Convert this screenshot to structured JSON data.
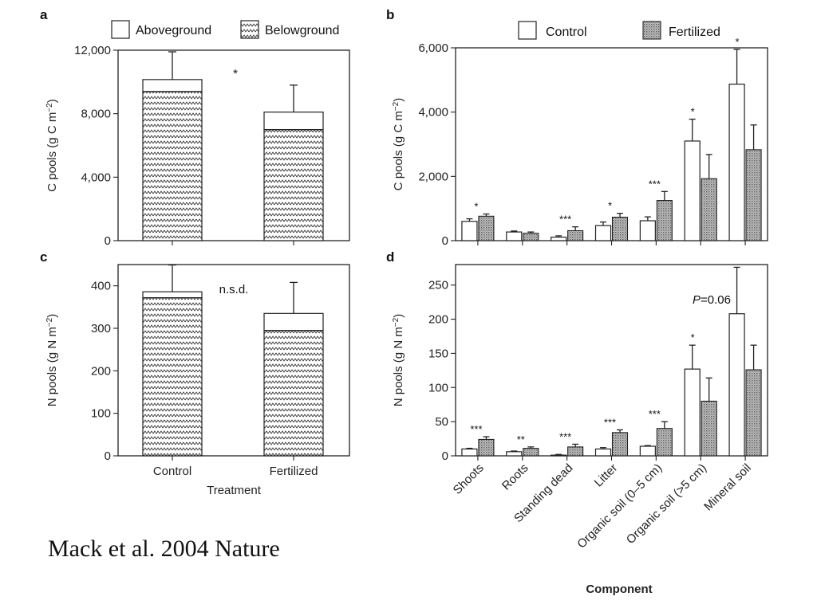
{
  "credit": "Mack et al. 2004 Nature",
  "chart_data": [
    {
      "panel": "a",
      "type": "bar",
      "stacked": true,
      "categories": [
        "Control",
        "Fertilized"
      ],
      "ylabel": "C pools (g C m−2)",
      "ylim": [
        0,
        12000
      ],
      "yticks": [
        0,
        4000,
        8000,
        12000
      ],
      "ytick_labels": [
        "0",
        "4,000",
        "8,000",
        "12,000"
      ],
      "legend": [
        "Aboveground",
        "Belowground"
      ],
      "series": [
        {
          "name": "Belowground",
          "values": [
            9400,
            7000
          ]
        },
        {
          "name": "Aboveground",
          "values": [
            750,
            1100
          ]
        }
      ],
      "total_error_top": [
        11900,
        9800
      ],
      "annotations": [
        {
          "text": "*",
          "between": [
            "Control",
            "Fertilized"
          ]
        }
      ],
      "show_xticklabels": false
    },
    {
      "panel": "c",
      "type": "bar",
      "stacked": true,
      "categories": [
        "Control",
        "Fertilized"
      ],
      "xlabel": "Treatment",
      "ylabel": "N pools (g N m−2)",
      "ylim": [
        0,
        450
      ],
      "yticks": [
        0,
        100,
        200,
        300,
        400
      ],
      "ytick_labels": [
        "0",
        "100",
        "200",
        "300",
        "400"
      ],
      "series": [
        {
          "name": "Belowground",
          "values": [
            372,
            295
          ]
        },
        {
          "name": "Aboveground",
          "values": [
            14,
            40
          ]
        }
      ],
      "total_error_top": [
        449,
        408
      ],
      "annotations": [
        {
          "text": "n.s.d.",
          "between": [
            "Control",
            "Fertilized"
          ]
        }
      ],
      "show_xticklabels": true
    },
    {
      "panel": "b",
      "type": "bar",
      "categories": [
        "Shoots",
        "Roots",
        "Standing dead",
        "Litter",
        "Organic soil (0–5 cm)",
        "Organic soil (>5 cm)",
        "Mineral soil"
      ],
      "ylabel": "C pools (g C m−2)",
      "ylim": [
        0,
        6000
      ],
      "yticks": [
        0,
        2000,
        4000,
        6000
      ],
      "ytick_labels": [
        "0",
        "2,000",
        "4,000",
        "6,000"
      ],
      "legend": [
        "Control",
        "Fertilized"
      ],
      "series": [
        {
          "name": "Control",
          "values": [
            600,
            270,
            110,
            470,
            620,
            3100,
            4870
          ],
          "err_top": [
            680,
            300,
            150,
            580,
            740,
            3780,
            5950
          ]
        },
        {
          "name": "Fertilized",
          "values": [
            760,
            230,
            310,
            730,
            1250,
            1930,
            2830
          ],
          "err_top": [
            830,
            270,
            430,
            850,
            1530,
            2680,
            3600
          ]
        }
      ],
      "significance": [
        "*",
        "",
        "***",
        "*",
        "***",
        "*",
        "*"
      ],
      "show_xticklabels": false
    },
    {
      "panel": "d",
      "type": "bar",
      "categories": [
        "Shoots",
        "Roots",
        "Standing dead",
        "Litter",
        "Organic soil (0–5 cm)",
        "Organic soil (>5 cm)",
        "Mineral soil"
      ],
      "xlabel": "Component",
      "ylabel": "N pools (g N m−2)",
      "ylim": [
        0,
        280
      ],
      "yticks": [
        0,
        50,
        100,
        150,
        200,
        250
      ],
      "ytick_labels": [
        "0",
        "50",
        "100",
        "150",
        "200",
        "250"
      ],
      "series": [
        {
          "name": "Control",
          "values": [
            10,
            6,
            1,
            10,
            14,
            127,
            208
          ],
          "err_top": [
            11,
            7,
            2,
            12,
            15,
            162,
            276
          ]
        },
        {
          "name": "Fertilized",
          "values": [
            24,
            11,
            13,
            34,
            40,
            80,
            126
          ],
          "err_top": [
            28,
            13,
            17,
            38,
            50,
            114,
            162
          ]
        }
      ],
      "significance": [
        "***",
        "**",
        "***",
        "***",
        "***",
        "*",
        ""
      ],
      "annotations": [
        {
          "text": "P=0.06",
          "above": "Mineral soil"
        }
      ],
      "show_xticklabels": true
    }
  ]
}
